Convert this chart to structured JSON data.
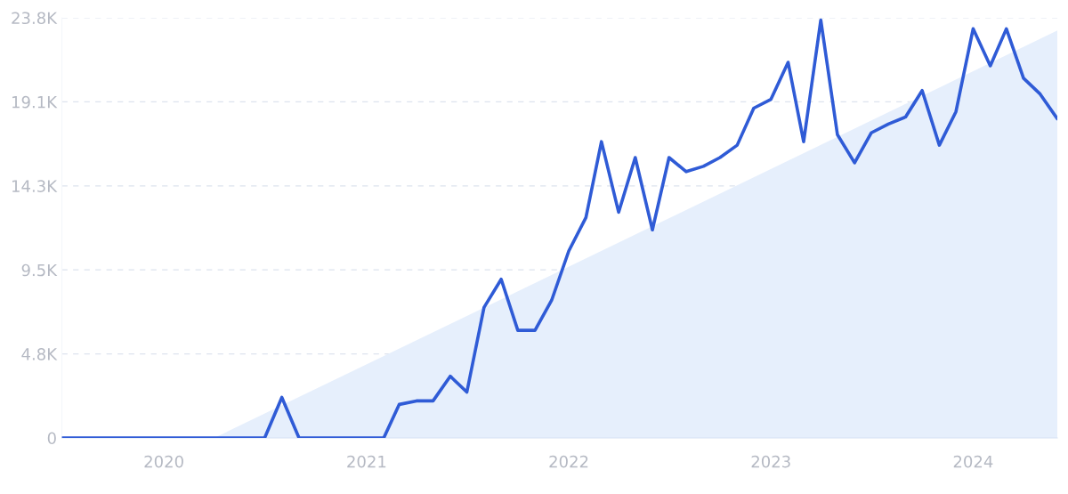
{
  "chart_data": {
    "type": "line",
    "x": [
      "2019-07",
      "2019-08",
      "2019-09",
      "2019-10",
      "2019-11",
      "2019-12",
      "2020-01",
      "2020-02",
      "2020-03",
      "2020-04",
      "2020-05",
      "2020-06",
      "2020-07",
      "2020-08",
      "2020-09",
      "2020-10",
      "2020-11",
      "2020-12",
      "2021-01",
      "2021-02",
      "2021-03",
      "2021-04",
      "2021-05",
      "2021-06",
      "2021-07",
      "2021-08",
      "2021-09",
      "2021-10",
      "2021-11",
      "2021-12",
      "2022-01",
      "2022-02",
      "2022-03",
      "2022-04",
      "2022-05",
      "2022-06",
      "2022-07",
      "2022-08",
      "2022-09",
      "2022-10",
      "2022-11",
      "2022-12",
      "2023-01",
      "2023-02",
      "2023-03",
      "2023-04",
      "2023-05",
      "2023-06",
      "2023-07",
      "2023-08",
      "2023-09",
      "2023-10",
      "2023-11",
      "2023-12",
      "2024-01",
      "2024-02",
      "2024-03",
      "2024-04",
      "2024-05",
      "2024-06"
    ],
    "series": [
      {
        "type": "area",
        "color": "#e6effc",
        "x": [
          "2020-04",
          "2024-06"
        ],
        "values": [
          0,
          23100
        ]
      },
      {
        "color": "#2f5bd6",
        "values": [
          0,
          0,
          0,
          0,
          0,
          0,
          0,
          0,
          0,
          0,
          0,
          0,
          0,
          2300,
          0,
          0,
          0,
          0,
          0,
          0,
          1900,
          2100,
          2100,
          3500,
          2600,
          7400,
          9000,
          6100,
          6100,
          7800,
          10600,
          12500,
          16800,
          12800,
          15900,
          11800,
          15900,
          15100,
          15400,
          15900,
          16600,
          18700,
          19200,
          21300,
          16800,
          23700,
          17200,
          15600,
          17300,
          17800,
          18200,
          19700,
          16600,
          18500,
          23200,
          21100,
          23200,
          20400,
          19500,
          18100
        ]
      }
    ],
    "xlim": [
      "2019-07",
      "2024-06"
    ],
    "xticks": [
      "2020",
      "2021",
      "2022",
      "2023",
      "2024"
    ],
    "ylim": [
      0,
      23825
    ],
    "yticks": [
      0,
      {
        "value": 4765,
        "label": "4.8K"
      },
      {
        "value": 9530,
        "label": "9.5K"
      },
      {
        "value": 14295,
        "label": "14.3K"
      },
      {
        "value": 19060,
        "label": "19.1K"
      },
      {
        "value": 23825,
        "label": "23.8K"
      }
    ],
    "grid": "y",
    "marker": "none",
    "line_style": "solid"
  }
}
